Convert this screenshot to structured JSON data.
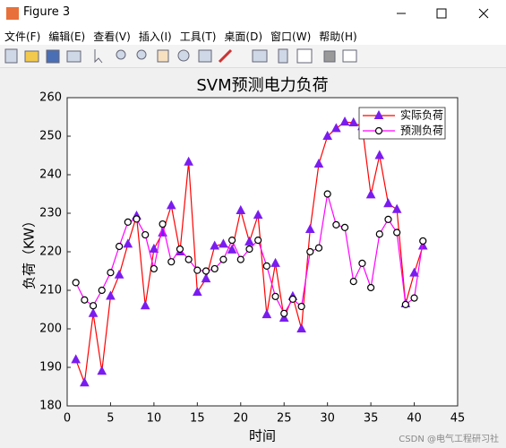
{
  "window": {
    "title": "Figure 3",
    "menu": [
      "文件(F)",
      "编辑(E)",
      "查看(V)",
      "插入(I)",
      "工具(T)",
      "桌面(D)",
      "窗口(W)",
      "帮助(H)"
    ]
  },
  "chart_data": {
    "type": "line",
    "title": "SVM预测电力负荷",
    "x_label": "时间",
    "y_label": "负荷（KW）",
    "x": [
      1,
      2,
      3,
      4,
      5,
      6,
      7,
      8,
      9,
      10,
      11,
      12,
      13,
      14,
      15,
      16,
      17,
      18,
      19,
      20,
      21,
      22,
      23,
      24,
      25,
      26,
      27,
      28,
      29,
      30,
      31,
      32,
      33,
      34,
      35,
      36,
      37,
      38,
      39,
      40,
      41
    ],
    "series": [
      {
        "name": "实际负荷",
        "color": "#ff0000",
        "marker": "triangle",
        "marker_color": "#7a1cf0",
        "values": [
          192,
          186,
          204,
          189,
          208.5,
          214,
          222,
          229.3,
          206,
          220.7,
          224.9,
          232,
          220,
          243.3,
          209.5,
          213,
          221.5,
          222,
          220.5,
          230.7,
          222.6,
          229.5,
          203.7,
          217,
          202.8,
          208.4,
          200,
          225.8,
          242.8,
          250,
          252,
          253.7,
          253.5,
          252.5,
          234.8,
          245,
          232.5,
          231,
          206.5,
          214.5,
          221.5
        ]
      },
      {
        "name": "预测负荷",
        "color": "#ff00ff",
        "marker": "circle",
        "marker_color": "#000000",
        "values": [
          212,
          207.5,
          206,
          210,
          214.6,
          221.4,
          227.7,
          228.5,
          224.4,
          215.6,
          227.2,
          217.4,
          220.7,
          218,
          215.2,
          215,
          215.6,
          218,
          223,
          218,
          220.7,
          223,
          216.3,
          208.4,
          204,
          207.7,
          205.8,
          220,
          221,
          235,
          227,
          226.3,
          212.3,
          217,
          210.7,
          224.6,
          228.4,
          225,
          206.3,
          208,
          222.8
        ]
      }
    ],
    "xlim": [
      0,
      45
    ],
    "xticks": [
      0,
      5,
      10,
      15,
      20,
      25,
      30,
      35,
      40,
      45
    ],
    "ylim": [
      180,
      260
    ],
    "yticks": [
      180,
      190,
      200,
      210,
      220,
      230,
      240,
      250,
      260
    ],
    "legend": "upper right"
  },
  "watermark": "CSDN @电气工程研习社"
}
